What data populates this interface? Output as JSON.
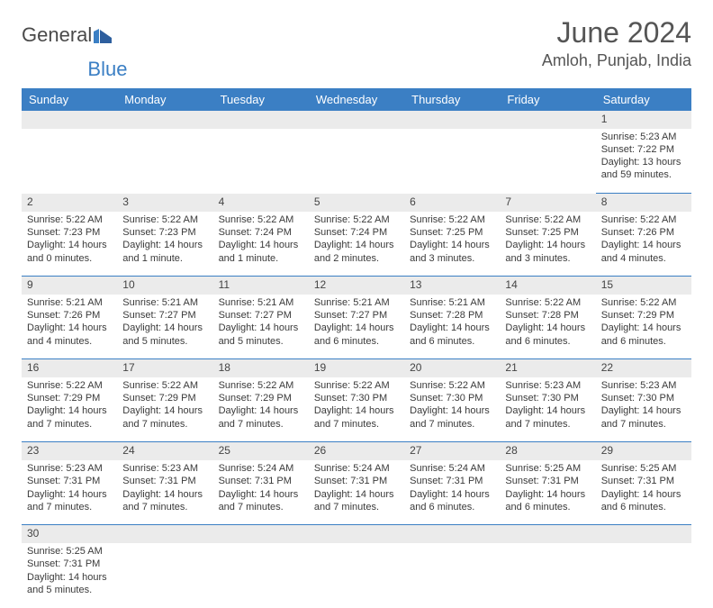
{
  "logo": {
    "part1": "Genera",
    "part2": "l",
    "part3": "Blue"
  },
  "title": "June 2024",
  "location": "Amloh, Punjab, India",
  "colors": {
    "header_bg": "#3b7fc4",
    "header_text": "#ffffff",
    "daynum_bg": "#ebebeb",
    "cell_border": "#3b7fc4",
    "text": "#3a3a3a",
    "page_bg": "#ffffff"
  },
  "fonts": {
    "title_size": 32,
    "location_size": 18,
    "header_size": 13,
    "daynum_size": 12,
    "cell_size": 11
  },
  "weekdays": [
    "Sunday",
    "Monday",
    "Tuesday",
    "Wednesday",
    "Thursday",
    "Friday",
    "Saturday"
  ],
  "weeks": [
    {
      "nums": [
        "",
        "",
        "",
        "",
        "",
        "",
        "1"
      ],
      "cells": [
        null,
        null,
        null,
        null,
        null,
        null,
        {
          "sunrise": "Sunrise: 5:23 AM",
          "sunset": "Sunset: 7:22 PM",
          "daylight": "Daylight: 13 hours and 59 minutes."
        }
      ]
    },
    {
      "nums": [
        "2",
        "3",
        "4",
        "5",
        "6",
        "7",
        "8"
      ],
      "cells": [
        {
          "sunrise": "Sunrise: 5:22 AM",
          "sunset": "Sunset: 7:23 PM",
          "daylight": "Daylight: 14 hours and 0 minutes."
        },
        {
          "sunrise": "Sunrise: 5:22 AM",
          "sunset": "Sunset: 7:23 PM",
          "daylight": "Daylight: 14 hours and 1 minute."
        },
        {
          "sunrise": "Sunrise: 5:22 AM",
          "sunset": "Sunset: 7:24 PM",
          "daylight": "Daylight: 14 hours and 1 minute."
        },
        {
          "sunrise": "Sunrise: 5:22 AM",
          "sunset": "Sunset: 7:24 PM",
          "daylight": "Daylight: 14 hours and 2 minutes."
        },
        {
          "sunrise": "Sunrise: 5:22 AM",
          "sunset": "Sunset: 7:25 PM",
          "daylight": "Daylight: 14 hours and 3 minutes."
        },
        {
          "sunrise": "Sunrise: 5:22 AM",
          "sunset": "Sunset: 7:25 PM",
          "daylight": "Daylight: 14 hours and 3 minutes."
        },
        {
          "sunrise": "Sunrise: 5:22 AM",
          "sunset": "Sunset: 7:26 PM",
          "daylight": "Daylight: 14 hours and 4 minutes."
        }
      ]
    },
    {
      "nums": [
        "9",
        "10",
        "11",
        "12",
        "13",
        "14",
        "15"
      ],
      "cells": [
        {
          "sunrise": "Sunrise: 5:21 AM",
          "sunset": "Sunset: 7:26 PM",
          "daylight": "Daylight: 14 hours and 4 minutes."
        },
        {
          "sunrise": "Sunrise: 5:21 AM",
          "sunset": "Sunset: 7:27 PM",
          "daylight": "Daylight: 14 hours and 5 minutes."
        },
        {
          "sunrise": "Sunrise: 5:21 AM",
          "sunset": "Sunset: 7:27 PM",
          "daylight": "Daylight: 14 hours and 5 minutes."
        },
        {
          "sunrise": "Sunrise: 5:21 AM",
          "sunset": "Sunset: 7:27 PM",
          "daylight": "Daylight: 14 hours and 6 minutes."
        },
        {
          "sunrise": "Sunrise: 5:21 AM",
          "sunset": "Sunset: 7:28 PM",
          "daylight": "Daylight: 14 hours and 6 minutes."
        },
        {
          "sunrise": "Sunrise: 5:22 AM",
          "sunset": "Sunset: 7:28 PM",
          "daylight": "Daylight: 14 hours and 6 minutes."
        },
        {
          "sunrise": "Sunrise: 5:22 AM",
          "sunset": "Sunset: 7:29 PM",
          "daylight": "Daylight: 14 hours and 6 minutes."
        }
      ]
    },
    {
      "nums": [
        "16",
        "17",
        "18",
        "19",
        "20",
        "21",
        "22"
      ],
      "cells": [
        {
          "sunrise": "Sunrise: 5:22 AM",
          "sunset": "Sunset: 7:29 PM",
          "daylight": "Daylight: 14 hours and 7 minutes."
        },
        {
          "sunrise": "Sunrise: 5:22 AM",
          "sunset": "Sunset: 7:29 PM",
          "daylight": "Daylight: 14 hours and 7 minutes."
        },
        {
          "sunrise": "Sunrise: 5:22 AM",
          "sunset": "Sunset: 7:29 PM",
          "daylight": "Daylight: 14 hours and 7 minutes."
        },
        {
          "sunrise": "Sunrise: 5:22 AM",
          "sunset": "Sunset: 7:30 PM",
          "daylight": "Daylight: 14 hours and 7 minutes."
        },
        {
          "sunrise": "Sunrise: 5:22 AM",
          "sunset": "Sunset: 7:30 PM",
          "daylight": "Daylight: 14 hours and 7 minutes."
        },
        {
          "sunrise": "Sunrise: 5:23 AM",
          "sunset": "Sunset: 7:30 PM",
          "daylight": "Daylight: 14 hours and 7 minutes."
        },
        {
          "sunrise": "Sunrise: 5:23 AM",
          "sunset": "Sunset: 7:30 PM",
          "daylight": "Daylight: 14 hours and 7 minutes."
        }
      ]
    },
    {
      "nums": [
        "23",
        "24",
        "25",
        "26",
        "27",
        "28",
        "29"
      ],
      "cells": [
        {
          "sunrise": "Sunrise: 5:23 AM",
          "sunset": "Sunset: 7:31 PM",
          "daylight": "Daylight: 14 hours and 7 minutes."
        },
        {
          "sunrise": "Sunrise: 5:23 AM",
          "sunset": "Sunset: 7:31 PM",
          "daylight": "Daylight: 14 hours and 7 minutes."
        },
        {
          "sunrise": "Sunrise: 5:24 AM",
          "sunset": "Sunset: 7:31 PM",
          "daylight": "Daylight: 14 hours and 7 minutes."
        },
        {
          "sunrise": "Sunrise: 5:24 AM",
          "sunset": "Sunset: 7:31 PM",
          "daylight": "Daylight: 14 hours and 7 minutes."
        },
        {
          "sunrise": "Sunrise: 5:24 AM",
          "sunset": "Sunset: 7:31 PM",
          "daylight": "Daylight: 14 hours and 6 minutes."
        },
        {
          "sunrise": "Sunrise: 5:25 AM",
          "sunset": "Sunset: 7:31 PM",
          "daylight": "Daylight: 14 hours and 6 minutes."
        },
        {
          "sunrise": "Sunrise: 5:25 AM",
          "sunset": "Sunset: 7:31 PM",
          "daylight": "Daylight: 14 hours and 6 minutes."
        }
      ]
    },
    {
      "nums": [
        "30",
        "",
        "",
        "",
        "",
        "",
        ""
      ],
      "cells": [
        {
          "sunrise": "Sunrise: 5:25 AM",
          "sunset": "Sunset: 7:31 PM",
          "daylight": "Daylight: 14 hours and 5 minutes."
        },
        null,
        null,
        null,
        null,
        null,
        null
      ]
    }
  ]
}
